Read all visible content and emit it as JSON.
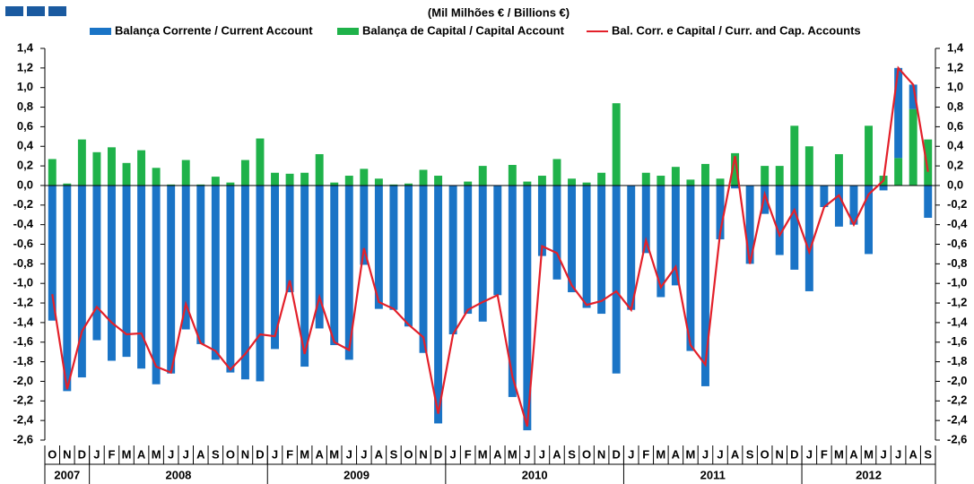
{
  "chart_data": {
    "type": "bar-line",
    "title": "(Mil Milhões € / Billions €)",
    "categories": [
      "O",
      "N",
      "D",
      "J",
      "F",
      "M",
      "A",
      "M",
      "J",
      "J",
      "A",
      "S",
      "O",
      "N",
      "D",
      "J",
      "F",
      "M",
      "A",
      "M",
      "J",
      "J",
      "A",
      "S",
      "O",
      "N",
      "D",
      "J",
      "F",
      "M",
      "A",
      "M",
      "J",
      "J",
      "A",
      "S",
      "O",
      "N",
      "D",
      "J",
      "F",
      "M",
      "A",
      "M",
      "J",
      "J",
      "A",
      "S",
      "O",
      "N",
      "D",
      "J",
      "F",
      "M",
      "A",
      "M",
      "J",
      "J",
      "A",
      "S"
    ],
    "years": [
      "2007",
      "2008",
      "2009",
      "2010",
      "2011",
      "2012"
    ],
    "series": [
      {
        "name": "Balança Corrente / Current Account",
        "kind": "bar",
        "color": "#1a74c6",
        "values": [
          -1.38,
          -2.1,
          -1.96,
          -1.58,
          -1.79,
          -1.75,
          -1.87,
          -2.03,
          -1.92,
          -1.47,
          -1.62,
          -1.78,
          -1.91,
          -1.98,
          -2.0,
          -1.67,
          -1.09,
          -1.85,
          -1.46,
          -1.63,
          -1.78,
          -0.81,
          -1.26,
          -1.27,
          -1.44,
          -1.71,
          -2.43,
          -1.52,
          -1.31,
          -1.39,
          -1.12,
          -2.16,
          -2.5,
          -0.72,
          -0.96,
          -1.09,
          -1.25,
          -1.31,
          -1.92,
          -1.27,
          -0.69,
          -1.14,
          -1.02,
          -1.69,
          -2.05,
          -0.55,
          -0.03,
          -0.8,
          -0.29,
          -0.71,
          -0.86,
          -1.08,
          -0.22,
          -0.42,
          -0.4,
          -0.7,
          -0.05,
          0.92,
          0.25,
          -0.33
        ]
      },
      {
        "name": "Balança de Capital / Capital Account",
        "kind": "bar",
        "color": "#1fb24a",
        "values": [
          0.27,
          0.02,
          0.47,
          0.34,
          0.39,
          0.23,
          0.36,
          0.18,
          0.01,
          0.26,
          0.01,
          0.09,
          0.03,
          0.26,
          0.48,
          0.13,
          0.12,
          0.13,
          0.32,
          0.03,
          0.1,
          0.17,
          0.07,
          0.01,
          0.02,
          0.16,
          0.1,
          0.0,
          0.04,
          0.2,
          0.0,
          0.21,
          0.04,
          0.1,
          0.27,
          0.07,
          0.03,
          0.13,
          0.84,
          0.0,
          0.13,
          0.1,
          0.19,
          0.06,
          0.22,
          0.07,
          0.33,
          0.0,
          0.2,
          0.2,
          0.61,
          0.4,
          0.0,
          0.32,
          0.0,
          0.61,
          0.1,
          0.28,
          0.78,
          0.47
        ]
      },
      {
        "name": "Bal. Corr. e Capital / Curr. and Cap. Accounts",
        "kind": "line",
        "color": "#e3202a",
        "values": [
          -1.11,
          -2.08,
          -1.49,
          -1.24,
          -1.4,
          -1.52,
          -1.51,
          -1.85,
          -1.91,
          -1.21,
          -1.61,
          -1.69,
          -1.88,
          -1.72,
          -1.52,
          -1.54,
          -0.97,
          -1.72,
          -1.14,
          -1.6,
          -1.68,
          -0.64,
          -1.19,
          -1.26,
          -1.42,
          -1.55,
          -2.33,
          -1.52,
          -1.27,
          -1.19,
          -1.12,
          -1.95,
          -2.46,
          -0.62,
          -0.69,
          -1.02,
          -1.22,
          -1.18,
          -1.08,
          -1.27,
          -0.56,
          -1.04,
          -0.83,
          -1.63,
          -1.83,
          -0.48,
          0.3,
          -0.8,
          -0.09,
          -0.51,
          -0.25,
          -0.68,
          -0.22,
          -0.1,
          -0.4,
          -0.09,
          0.05,
          1.2,
          1.03,
          0.14
        ]
      }
    ],
    "ylim": [
      -2.6,
      1.4
    ],
    "yticks": [
      {
        "value": 1.4,
        "label": "1,4"
      },
      {
        "value": 1.2,
        "label": "1,2"
      },
      {
        "value": 1.0,
        "label": "1,0"
      },
      {
        "value": 0.8,
        "label": "0,8"
      },
      {
        "value": 0.6,
        "label": "0,6"
      },
      {
        "value": 0.4,
        "label": "0,4"
      },
      {
        "value": 0.2,
        "label": "0,2"
      },
      {
        "value": 0,
        "label": "0,0"
      },
      {
        "value": -0.2,
        "label": "-0,2"
      },
      {
        "value": -0.4,
        "label": "-0,4"
      },
      {
        "value": -0.6,
        "label": "-0,6"
      },
      {
        "value": -0.8,
        "label": "-0,8"
      },
      {
        "value": -1.0,
        "label": "-1,0"
      },
      {
        "value": -1.2,
        "label": "-1,2"
      },
      {
        "value": -1.4,
        "label": "-1,4"
      },
      {
        "value": -1.6,
        "label": "-1,6"
      },
      {
        "value": -1.8,
        "label": "-1,8"
      },
      {
        "value": -2.0,
        "label": "-2,0"
      },
      {
        "value": -2.2,
        "label": "-2,2"
      },
      {
        "value": -2.4,
        "label": "-2,4"
      },
      {
        "value": -2.6,
        "label": "-2,6"
      }
    ]
  }
}
